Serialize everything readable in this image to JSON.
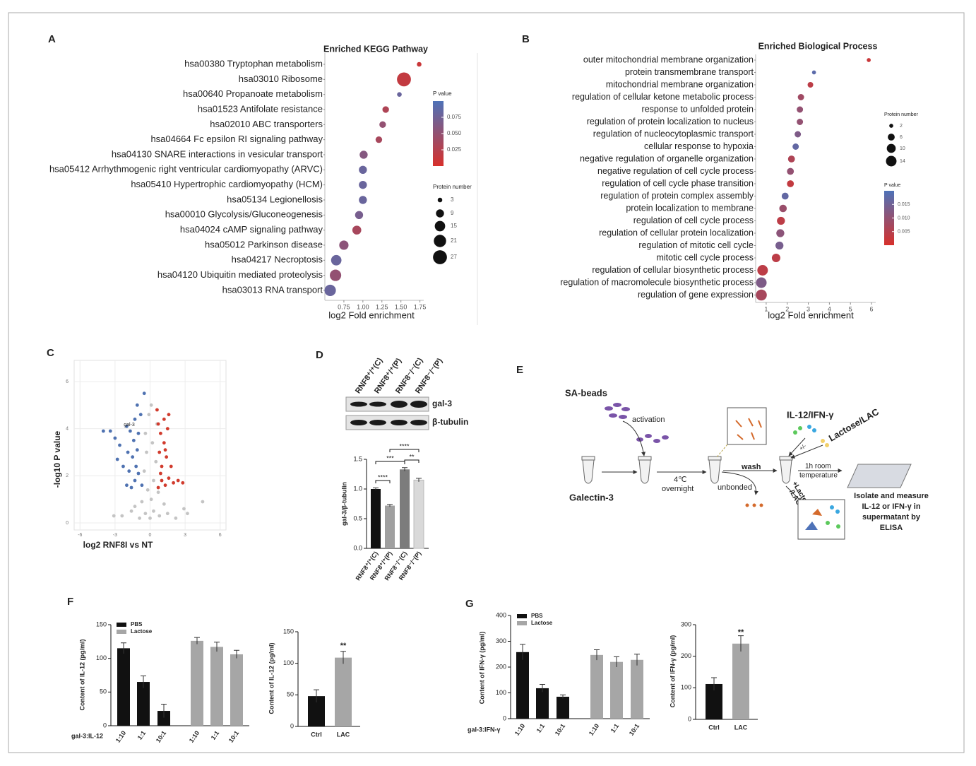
{
  "chart_data": [
    {
      "type": "dot",
      "panel": "A",
      "title": "Enriched KEGG Pathway",
      "xlabel": "log2 Fold enrichment",
      "categories": [
        "hsa00380 Tryptophan metabolism",
        "hsa03010 Ribosome",
        "hsa00640 Propanoate metabolism",
        "hsa01523 Antifolate resistance",
        "hsa02010 ABC transporters",
        "hsa04664 Fc epsilon RI signaling pathway",
        "hsa04130 SNARE interactions in vesicular transport",
        "hsa05412 Arrhythmogenic right ventricular cardiomyopathy (ARVC)",
        "hsa05410 Hypertrophic cardiomyopathy (HCM)",
        "hsa05134 Legionellosis",
        "hsa00010 Glycolysis/Gluconeogenesis",
        "hsa04024 cAMP signaling pathway",
        "hsa05012 Parkinson disease",
        "hsa04217 Necroptosis",
        "hsa04120 Ubiquitin mediated proteolysis",
        "hsa03013 RNA transport"
      ],
      "values": [
        1.74,
        1.54,
        1.48,
        1.3,
        1.26,
        1.21,
        1.01,
        1.0,
        1.0,
        1.0,
        0.95,
        0.92,
        0.75,
        0.65,
        0.64,
        0.57
      ],
      "sizes": [
        3,
        27,
        3,
        6,
        6,
        6,
        9,
        9,
        9,
        9,
        9,
        11,
        12,
        15,
        18,
        18
      ],
      "pvalues": [
        0.01,
        0.015,
        0.08,
        0.03,
        0.05,
        0.035,
        0.06,
        0.08,
        0.08,
        0.08,
        0.07,
        0.035,
        0.055,
        0.08,
        0.05,
        0.08
      ],
      "xlim": [
        0.5,
        1.8
      ],
      "xticks": [
        0.75,
        {
          "value": 1,
          "label": "1.00"
        },
        1.25,
        {
          "value": 1.5,
          "label": "1.50"
        },
        1.75
      ],
      "color_legend": {
        "title": "P value",
        "clim": [
          0,
          0.1
        ],
        "ticks": [
          0.025,
          {
            "value": 0.05,
            "label": "0.050"
          },
          0.075
        ],
        "colors": [
          "#d7302b",
          "#4e72b8"
        ]
      },
      "size_legend": {
        "title": "Protein number",
        "values": [
          3,
          9,
          15,
          21,
          27
        ]
      }
    },
    {
      "type": "dot",
      "panel": "B",
      "title": "Enriched Biological Process",
      "xlabel": "log2 Fold enrichment",
      "categories": [
        "outer mitochondrial membrane organization",
        "protein transmembrane transport",
        "mitochondrial membrane organization",
        "regulation of cellular ketone metabolic process",
        "response to unfolded protein",
        "regulation of protein localization to nucleus",
        "regulation of nucleocytoplasmic transport",
        "cellular response to hypoxia",
        "negative regulation of organelle organization",
        "negative regulation of cell cycle process",
        "regulation of cell cycle phase transition",
        "regulation of protein complex assembly",
        "protein localization to membrane",
        "regulation of cell cycle process",
        "regulation of cellular protein localization",
        "regulation of mitotic cell cycle",
        "mitotic cell cycle process",
        "regulation of cellular biosynthetic process",
        "regulation of macromolecule biosynthetic process",
        "regulation of gene expression"
      ],
      "values": [
        5.87,
        3.27,
        3.1,
        2.65,
        2.6,
        2.6,
        2.5,
        2.4,
        2.2,
        2.15,
        2.15,
        1.9,
        1.8,
        1.7,
        1.67,
        1.63,
        1.47,
        0.83,
        0.77,
        0.77
      ],
      "sizes": [
        2,
        2,
        4,
        5,
        5,
        5,
        5,
        5,
        6,
        6,
        6,
        6,
        7,
        8,
        8,
        8,
        9,
        14,
        14,
        15
      ],
      "pvalues": [
        0.002,
        0.018,
        0.004,
        0.008,
        0.01,
        0.01,
        0.013,
        0.017,
        0.006,
        0.01,
        0.003,
        0.017,
        0.009,
        0.004,
        0.011,
        0.014,
        0.004,
        0.004,
        0.013,
        0.007
      ],
      "xlim": [
        0.5,
        6.2
      ],
      "xticks": [
        1,
        2,
        3,
        4,
        5,
        6
      ],
      "color_legend": {
        "title": "P value",
        "clim": [
          0,
          0.02
        ],
        "ticks": [
          0.015,
          {
            "value": 0.01,
            "label": "0.010"
          },
          0.005
        ],
        "colors": [
          "#d7302b",
          "#4e72b8"
        ]
      },
      "size_legend": {
        "title": "Protein number",
        "values": [
          2,
          6,
          10,
          14
        ]
      }
    },
    {
      "type": "scatter",
      "panel": "C",
      "xlabel": "log2 RNF8I vs NT",
      "ylabel": "-log10 P value",
      "annotation": "gal-3",
      "xlim": [
        -6.5,
        6.5
      ],
      "xticks": [
        -6,
        -3,
        0,
        3,
        6
      ],
      "ylim": [
        -0.3,
        6.9
      ],
      "yticks": [
        0,
        2,
        4,
        6
      ],
      "grid": true,
      "series": [
        {
          "color": "#c4c4c4",
          "x": [
            0,
            0.3,
            -0.4,
            0.8,
            -0.9,
            1.5,
            -1.6,
            2.2,
            -2.4,
            0.1,
            -0.2,
            0.3,
            -0.5,
            0.5,
            -0.3,
            0.2,
            -0.4,
            0.6,
            -0.1,
            0.1,
            2.9,
            3.2,
            -3.1,
            4.5,
            -0.7,
            0.7,
            1.2,
            -1.3
          ],
          "values": [
            0.2,
            0.5,
            0.4,
            0.3,
            0.2,
            0.4,
            0.5,
            0.2,
            0.3,
            1,
            1.4,
            1.8,
            2.2,
            2.6,
            3,
            3.4,
            3.8,
            4.2,
            4.6,
            5,
            0.6,
            0.4,
            0.3,
            0.9,
            0.9,
            1.3,
            0.8,
            0.7
          ]
        },
        {
          "color": "#4f72b1",
          "x": [
            -1.0,
            -1.3,
            -1.6,
            -2.0,
            -1.2,
            -1.5,
            -1.1,
            -1.8,
            -2.3,
            -1.4,
            -1.0,
            -1.7,
            -2.6,
            -3.0,
            -3.4,
            -4.0,
            -2.0,
            -1.3,
            -0.8,
            -1.1,
            -0.5,
            -0.7,
            -1.9,
            -2.8
          ],
          "values": [
            2.1,
            1.8,
            1.5,
            1.6,
            2.4,
            2.8,
            3.1,
            2.2,
            2.4,
            3.5,
            3.8,
            3.9,
            3.3,
            3.6,
            3.9,
            3.9,
            4.1,
            4.4,
            4.6,
            5.0,
            5.5,
            1.6,
            3.0,
            2.7
          ]
        },
        {
          "color": "#d13b2d",
          "x": [
            0.7,
            1.0,
            1.3,
            1.6,
            2.0,
            2.4,
            2.8,
            1.0,
            1.4,
            0.8,
            1.2,
            0.9,
            1.5,
            0.7,
            1.2,
            0.6,
            1.6,
            0.9,
            1.8,
            1.3
          ],
          "values": [
            1.5,
            1.8,
            1.6,
            1.9,
            1.7,
            1.8,
            1.7,
            2.4,
            2.8,
            3.0,
            3.4,
            3.8,
            4.0,
            4.2,
            4.4,
            4.8,
            4.6,
            2.1,
            2.4,
            3.1
          ]
        }
      ]
    },
    {
      "type": "bar",
      "panel": "D",
      "ylabel": "gal-3/β-tubulin",
      "categories": [
        "RNF8⁺/⁺(C)",
        "RNF8⁺/⁺(P)",
        "RNF8⁻/⁻(C)",
        "RNF8⁻/⁻(P)"
      ],
      "values": [
        1.0,
        0.72,
        1.33,
        1.15
      ],
      "errors": [
        0.02,
        0.02,
        0.03,
        0.03
      ],
      "colors": [
        "#111111",
        "#a0a0a0",
        "#7c7c7c",
        "#d9d9d9"
      ],
      "ylim": [
        0,
        1.5
      ],
      "yticks": [
        {
          "value": 0,
          "label": "0.0"
        },
        0.5,
        {
          "value": 1,
          "label": "1.0"
        },
        1.5
      ],
      "annotations": [
        "****",
        "***",
        "**",
        "****"
      ]
    },
    {
      "type": "bar",
      "panel": "F",
      "ylabel": "Content of IL-12  (pg/ml)",
      "xlabel": "gal-3:IL-12",
      "categories": [
        "1:10",
        "1:1",
        "10:1"
      ],
      "series": [
        {
          "name": "PBS",
          "color": "#111111",
          "values": [
            115,
            65,
            22
          ],
          "errors": [
            8,
            9,
            10
          ]
        },
        {
          "name": "Lactose",
          "color": "#a6a6a6",
          "values": [
            126,
            117,
            106
          ],
          "errors": [
            5,
            7,
            6
          ]
        }
      ],
      "ylim": [
        0,
        150
      ],
      "yticks": [
        0,
        50,
        100,
        150
      ]
    },
    {
      "type": "bar",
      "ylabel": "Content of IL-12  (pg/ml)",
      "categories": [
        "Ctrl",
        "LAC"
      ],
      "values": [
        48,
        109
      ],
      "errors": [
        10,
        10
      ],
      "colors": [
        "#111111",
        "#a6a6a6"
      ],
      "ylim": [
        0,
        150
      ],
      "yticks": [
        0,
        50,
        100,
        150
      ],
      "annotations": [
        "**"
      ]
    },
    {
      "type": "bar",
      "panel": "G",
      "ylabel": "Content of IFN-γ  (pg/ml)",
      "xlabel": "gal-3:IFN-γ",
      "categories": [
        "1:10",
        "1:1",
        "10:1"
      ],
      "series": [
        {
          "name": "PBS",
          "color": "#111111",
          "values": [
            258,
            118,
            85
          ],
          "errors": [
            30,
            15,
            7
          ]
        },
        {
          "name": "Lactose",
          "color": "#a6a6a6",
          "values": [
            247,
            220,
            228
          ],
          "errors": [
            20,
            20,
            22
          ]
        }
      ],
      "ylim": [
        0,
        400
      ],
      "yticks": [
        0,
        100,
        200,
        300,
        400
      ]
    },
    {
      "type": "bar",
      "ylabel": "Content of IFN-γ  (pg/ml)",
      "categories": [
        "Ctrl",
        "LAC"
      ],
      "values": [
        112,
        240
      ],
      "errors": [
        20,
        25
      ],
      "colors": [
        "#111111",
        "#a6a6a6"
      ],
      "ylim": [
        0,
        300
      ],
      "yticks": [
        0,
        100,
        200,
        300
      ],
      "annotations": [
        "**"
      ]
    }
  ],
  "blot": {
    "lanes": [
      "RNF8⁺/⁺(C)",
      "RNF8⁺/⁺(P)",
      "RNF8⁻/⁻(C)",
      "RNF8⁻/⁻(P)"
    ],
    "rows": [
      "gal-3",
      "β-tubulin"
    ]
  },
  "diagram": {
    "panel": "E",
    "beads": "SA-beads",
    "activation": "activation",
    "protein": "Galectin-3",
    "temp": "4℃",
    "time": "overnight",
    "unbonded": "unbonded",
    "wash": "wash",
    "cytokine": "IL-12/IFN-γ",
    "lactose": "Lactose/LAC",
    "plusminus": "+/-",
    "room1": "1h room",
    "room2": "temperature",
    "lac1": "+Lactose",
    "lac2": "/LAC",
    "result": [
      "Isolate and measure",
      "IL-12 or IFN-γ in",
      "supermatant by",
      "ELISA"
    ]
  }
}
